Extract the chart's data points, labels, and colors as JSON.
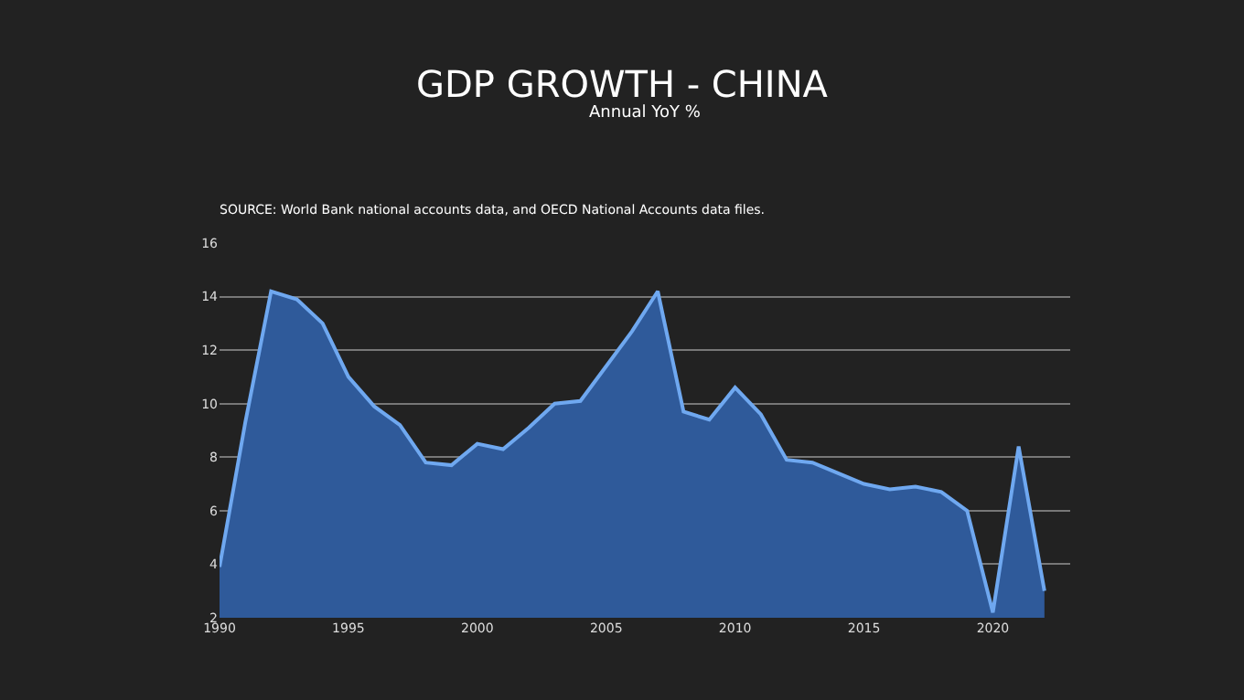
{
  "chart_data": {
    "type": "area",
    "title": "GDP GROWTH - CHINA",
    "subtitle": "Annual YoY %",
    "annotations": [
      "SOURCE: World Bank national accounts data, and OECD National Accounts data files."
    ],
    "x": [
      1990,
      1991,
      1992,
      1993,
      1994,
      1995,
      1996,
      1997,
      1998,
      1999,
      2000,
      2001,
      2002,
      2003,
      2004,
      2005,
      2006,
      2007,
      2008,
      2009,
      2010,
      2011,
      2012,
      2013,
      2014,
      2015,
      2016,
      2017,
      2018,
      2019,
      2020,
      2021,
      2022
    ],
    "series": [
      {
        "color": "#6fa8f0",
        "values": [
          3.9,
          9.3,
          14.2,
          13.9,
          13.0,
          11.0,
          9.9,
          9.2,
          7.8,
          7.7,
          8.5,
          8.3,
          9.1,
          10.0,
          10.1,
          11.4,
          12.7,
          14.2,
          9.7,
          9.4,
          10.6,
          9.6,
          7.9,
          7.8,
          7.4,
          7.0,
          6.8,
          6.9,
          6.7,
          6.0,
          2.2,
          8.4,
          3.0
        ]
      }
    ],
    "xlim": [
      1990,
      2023
    ],
    "xticks": [
      1990,
      1995,
      2000,
      2005,
      2010,
      2015,
      2020
    ],
    "ylim": [
      2,
      16
    ],
    "yticks": [
      2,
      4,
      6,
      8,
      10,
      12,
      14,
      16
    ],
    "grid": "y",
    "marker": "none",
    "line_style": "solid"
  }
}
